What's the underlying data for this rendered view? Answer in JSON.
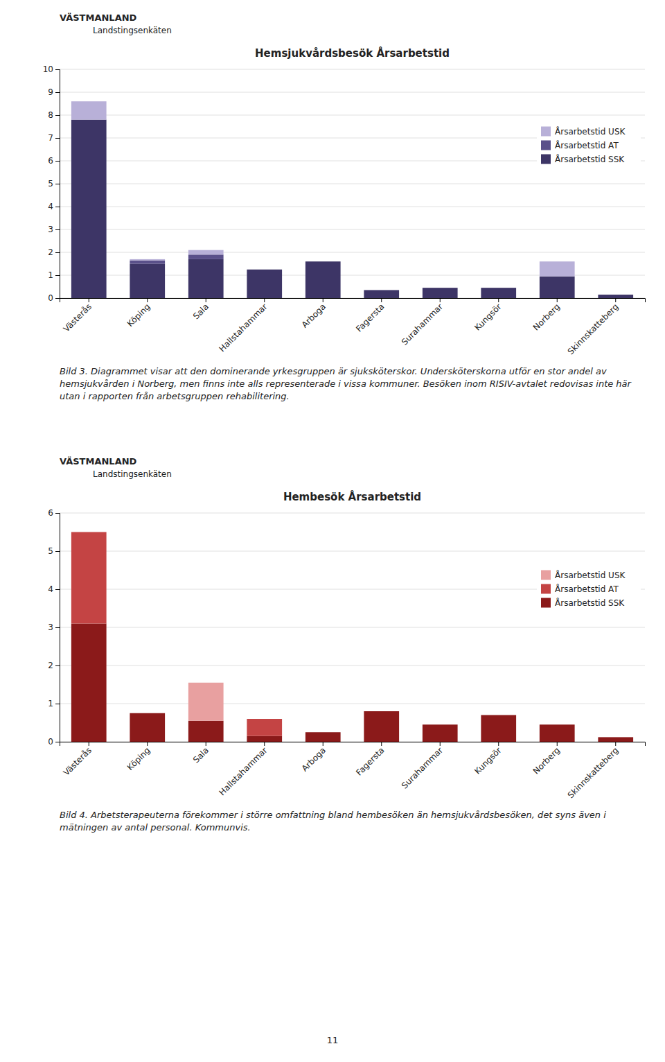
{
  "chart_data": [
    {
      "type": "bar",
      "stacked": true,
      "grid": true,
      "legend": "upper right",
      "header": "VÄSTMANLAND",
      "subtitle": "Landstingsenkäten",
      "title": "Hemsjukvårdsbesök Årsarbetstid",
      "caption": "Bild 3. Diagrammet visar att den dominerande yrkesgruppen är sjuksköterskor. Undersköterskorna utför en stor andel av hemsjukvården i Norberg, men finns inte alls representerade i vissa kommuner. Besöken inom RISIV-avtalet redovisas inte här utan i rapporten från arbetsgruppen rehabilitering.",
      "categories": [
        "Västerås",
        "Köping",
        "Sala",
        "Hallstahammar",
        "Arboga",
        "Fagersta",
        "Surahammar",
        "Kungsör",
        "Norberg",
        "Skinnskatteberg"
      ],
      "series": [
        {
          "name": "Årsarbetstid SSK",
          "color": "#3d3566",
          "values": [
            7.8,
            1.5,
            1.7,
            1.25,
            1.6,
            0.35,
            0.45,
            0.45,
            0.95,
            0.15
          ]
        },
        {
          "name": "Årsarbetstid AT",
          "color": "#5a508a",
          "values": [
            0.0,
            0.15,
            0.2,
            0.0,
            0.0,
            0.0,
            0.0,
            0.0,
            0.0,
            0.0
          ]
        },
        {
          "name": "Årsarbetstid USK",
          "color": "#b8b0d8",
          "values": [
            0.8,
            0.05,
            0.2,
            0.0,
            0.0,
            0.0,
            0.0,
            0.0,
            0.65,
            0.0
          ]
        }
      ],
      "ylim": [
        0,
        10
      ],
      "yticks": [
        0,
        1,
        2,
        3,
        4,
        5,
        6,
        7,
        8,
        9,
        10
      ]
    },
    {
      "type": "bar",
      "stacked": true,
      "grid": true,
      "legend": "upper right",
      "header": "VÄSTMANLAND",
      "subtitle": "Landstingsenkäten",
      "title": "Hembesök Årsarbetstid",
      "caption": "Bild 4. Arbetsterapeuterna förekommer i större omfattning bland hembesöken än hemsjukvårdsbesöken, det syns även i mätningen av antal personal. Kommunvis.",
      "categories": [
        "Västerås",
        "Köping",
        "Sala",
        "Hallstahammar",
        "Arboga",
        "Fagersta",
        "Surahammar",
        "Kungsör",
        "Norberg",
        "Skinnskatteberg"
      ],
      "series": [
        {
          "name": "Årsarbetstid SSK",
          "color": "#8b1a1a",
          "values": [
            3.1,
            0.75,
            0.55,
            0.15,
            0.25,
            0.8,
            0.45,
            0.7,
            0.45,
            0.12
          ]
        },
        {
          "name": "Årsarbetstid AT",
          "color": "#c44444",
          "values": [
            2.4,
            0.0,
            0.0,
            0.45,
            0.0,
            0.0,
            0.0,
            0.0,
            0.0,
            0.0
          ]
        },
        {
          "name": "Årsarbetstid USK",
          "color": "#e8a0a0",
          "values": [
            0.0,
            0.0,
            1.0,
            0.0,
            0.0,
            0.0,
            0.0,
            0.0,
            0.0,
            0.0
          ]
        }
      ],
      "ylim": [
        0,
        6
      ],
      "yticks": [
        0,
        1,
        2,
        3,
        4,
        5,
        6
      ]
    }
  ],
  "page_number": "11"
}
